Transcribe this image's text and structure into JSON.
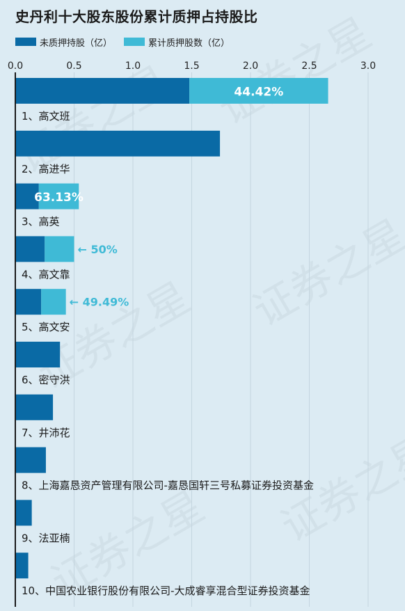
{
  "title": "史丹利十大股东股份累计质押占持股比",
  "colors": {
    "unpledged": "#0a6aa5",
    "pledged": "#3fbad6",
    "background": "#dcebf3",
    "grid": "#c4d5df",
    "axis": "#1a1a1a",
    "label_inside": "#ffffff",
    "label_outside": "#3fbad6"
  },
  "watermark": "证券之星",
  "chart_data": {
    "type": "bar",
    "orientation": "horizontal",
    "stacked": true,
    "xlim": [
      0,
      3.0
    ],
    "ticks": [
      "0.0",
      "0.5",
      "1.0",
      "1.5",
      "2.0",
      "2.5",
      "3.0"
    ],
    "tick_values": [
      0,
      0.5,
      1.0,
      1.5,
      2.0,
      2.5,
      3.0
    ],
    "grid": true,
    "legend_position": "top-left",
    "categories": [
      "1、高文班",
      "2、高进华",
      "3、高英",
      "4、高文靠",
      "5、高文安",
      "6、密守洪",
      "7、井沛花",
      "8、上海嘉恳资产管理有限公司-嘉恳国轩三号私募证券投资基金",
      "9、法亚楠",
      "10、中国农业银行股份有限公司-大成睿享混合型证券投资基金"
    ],
    "series": [
      {
        "name": "未质押持股（亿）",
        "values": [
          1.48,
          1.74,
          0.2,
          0.25,
          0.22,
          0.38,
          0.32,
          0.26,
          0.14,
          0.11
        ]
      },
      {
        "name": "累计质押股数（亿）",
        "values": [
          1.18,
          0,
          0.34,
          0.25,
          0.21,
          0,
          0,
          0,
          0,
          0
        ]
      }
    ],
    "pledge_ratio_labels": [
      "44.42%",
      "",
      "63.13%",
      "← 50%",
      "← 49.49%",
      "",
      "",
      "",
      "",
      ""
    ],
    "label_inside": [
      true,
      false,
      true,
      false,
      false,
      false,
      false,
      false,
      false,
      false
    ]
  }
}
